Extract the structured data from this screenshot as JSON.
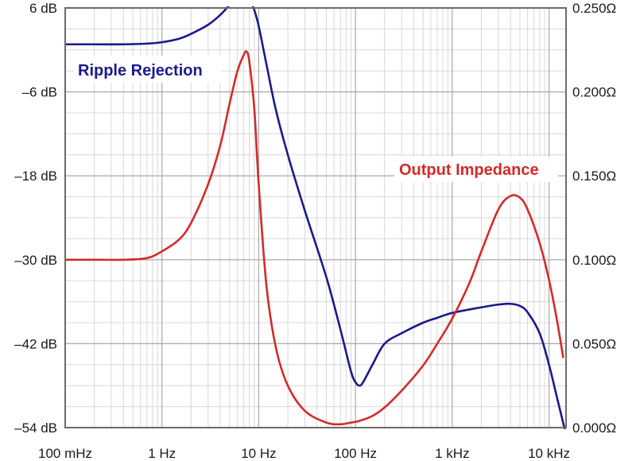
{
  "chart_data": {
    "type": "line",
    "grid": true,
    "x_scale": "log",
    "x_unit": "Hz",
    "xlim": [
      0.1,
      15000
    ],
    "x_ticks": [
      {
        "value": 0.1,
        "label": "100 mHz"
      },
      {
        "value": 1,
        "label": "1 Hz"
      },
      {
        "value": 10,
        "label": "10 Hz"
      },
      {
        "value": 100,
        "label": "100 Hz"
      },
      {
        "value": 1000,
        "label": "1 kHz"
      },
      {
        "value": 10000,
        "label": "10 kHz"
      }
    ],
    "y_left": {
      "unit": "dB",
      "ylim": [
        -54,
        6
      ],
      "ticks": [
        {
          "value": 6,
          "label": "6 dB"
        },
        {
          "value": -6,
          "label": "–6 dB"
        },
        {
          "value": -18,
          "label": "–18 dB"
        },
        {
          "value": -30,
          "label": "–30 dB"
        },
        {
          "value": -42,
          "label": "–42 dB"
        },
        {
          "value": -54,
          "label": "–54 dB"
        }
      ]
    },
    "y_right": {
      "unit": "Ω",
      "ylim": [
        0,
        0.25
      ],
      "ticks": [
        {
          "value": 0.25,
          "label": "0.250Ω"
        },
        {
          "value": 0.2,
          "label": "0.200Ω"
        },
        {
          "value": 0.15,
          "label": "0.150Ω"
        },
        {
          "value": 0.1,
          "label": "0.100Ω"
        },
        {
          "value": 0.05,
          "label": "0.050Ω"
        },
        {
          "value": 0,
          "label": "0.000Ω"
        }
      ]
    },
    "series": [
      {
        "name": "Ripple Rejection",
        "color": "#1a1a8c",
        "axis": "left",
        "x": [
          0.1,
          0.2,
          0.4,
          0.7,
          1,
          1.5,
          2,
          3,
          4,
          5,
          6,
          7,
          7.5,
          8,
          9,
          10,
          12,
          15,
          20,
          30,
          50,
          70,
          90,
          100,
          110,
          120,
          150,
          200,
          300,
          500,
          700,
          1000,
          2000,
          3000,
          4000,
          5000,
          6000,
          8000,
          10000,
          12000,
          15000
        ],
        "y": [
          0.8,
          0.8,
          0.8,
          0.9,
          1.1,
          1.6,
          2.3,
          3.6,
          5.0,
          6.4,
          7.4,
          7.9,
          7.9,
          7.4,
          5.7,
          3.4,
          -2.0,
          -8.5,
          -15.0,
          -23.0,
          -32.5,
          -40.0,
          -46.0,
          -47.5,
          -48.0,
          -47.5,
          -45.0,
          -42.0,
          -40.5,
          -39.0,
          -38.3,
          -37.6,
          -36.8,
          -36.4,
          -36.3,
          -36.6,
          -37.5,
          -40.5,
          -45.0,
          -49.5,
          -55.0
        ]
      },
      {
        "name": "Output Impedance",
        "color": "#d42a2a",
        "axis": "right",
        "x": [
          0.1,
          0.2,
          0.4,
          0.7,
          1,
          1.5,
          2,
          3,
          4,
          5,
          6,
          7,
          7.5,
          8,
          9,
          10,
          12,
          15,
          20,
          30,
          50,
          70,
          90,
          110,
          150,
          200,
          300,
          500,
          700,
          1000,
          1500,
          2000,
          3000,
          4000,
          5000,
          6000,
          8000,
          10000,
          12000,
          14000
        ],
        "y": [
          0.1,
          0.1,
          0.1,
          0.101,
          0.105,
          0.112,
          0.122,
          0.145,
          0.168,
          0.193,
          0.212,
          0.222,
          0.224,
          0.218,
          0.19,
          0.145,
          0.085,
          0.048,
          0.025,
          0.01,
          0.003,
          0.002,
          0.003,
          0.004,
          0.007,
          0.012,
          0.022,
          0.037,
          0.05,
          0.065,
          0.086,
          0.105,
          0.13,
          0.138,
          0.137,
          0.13,
          0.11,
          0.088,
          0.065,
          0.042
        ]
      }
    ],
    "annotations": [
      "Ripple Rejection",
      "Output Impedance"
    ]
  }
}
